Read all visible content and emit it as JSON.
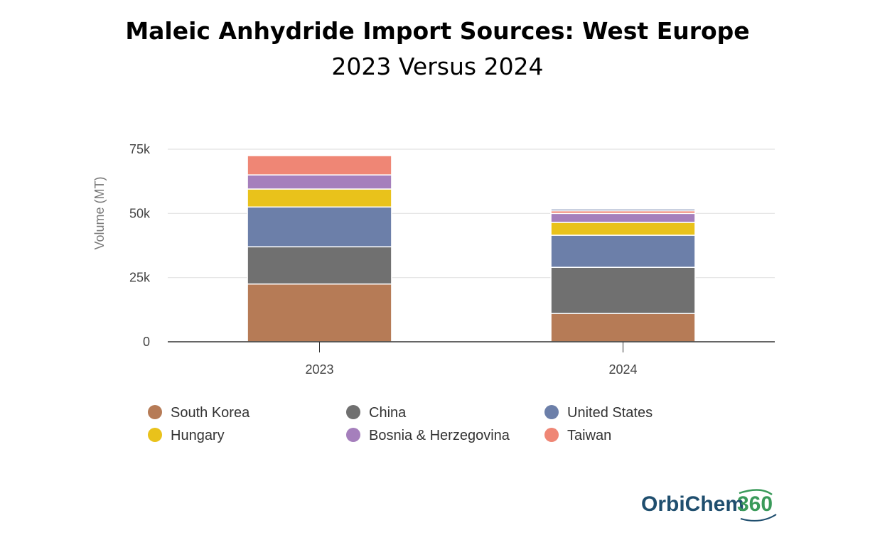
{
  "chart_data": {
    "type": "bar",
    "stacked": true,
    "title": "Maleic Anhydride Import Sources: West Europe",
    "subtitle": "2023 Versus 2024",
    "ylabel": "Volume (MT)",
    "xlabel": "",
    "categories": [
      "2023",
      "2024"
    ],
    "ylim": [
      0,
      75000
    ],
    "yticks": [
      0,
      25000,
      50000,
      75000
    ],
    "ytick_labels": [
      "0",
      "25k",
      "50k",
      "75k"
    ],
    "grid": true,
    "legend_position": "bottom",
    "series": [
      {
        "name": "South Korea",
        "color": "#b67b56",
        "values": [
          22500,
          11000
        ]
      },
      {
        "name": "China",
        "color": "#707070",
        "values": [
          14500,
          18000
        ]
      },
      {
        "name": "United States",
        "color": "#6c7fa9",
        "values": [
          15500,
          12500
        ]
      },
      {
        "name": "Hungary",
        "color": "#e9c21b",
        "values": [
          7000,
          5000
        ]
      },
      {
        "name": "Bosnia & Herzegovina",
        "color": "#a57fbc",
        "values": [
          5500,
          3500
        ]
      },
      {
        "name": "Taiwan",
        "color": "#ef8675",
        "values": [
          7500,
          1000
        ]
      },
      {
        "name": "",
        "color": "#6c7fa9",
        "values": [
          0,
          700
        ]
      }
    ]
  },
  "logo": {
    "text_main": "OrbiChem",
    "text_accent": "360"
  }
}
